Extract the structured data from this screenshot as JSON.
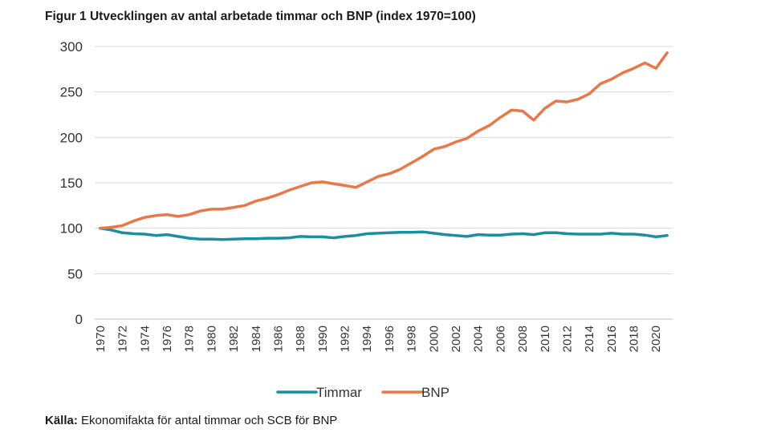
{
  "title": "Figur 1 Utvecklingen av antal arbetade timmar och BNP (index 1970=100)",
  "source": {
    "label": "Källa:",
    "text": " Ekonomifakta för antal timmar och SCB för BNP"
  },
  "colors": {
    "timmar": "#1b8fa0",
    "bnp": "#e8774a",
    "grid": "#d9d9d9",
    "axis": "#bfbfbf"
  },
  "chart_data": {
    "type": "line",
    "title": "Figur 1 Utvecklingen av antal arbetade timmar och BNP (index 1970=100)",
    "xlabel": "",
    "ylabel": "",
    "ylim": [
      0,
      300
    ],
    "yticks": [
      0,
      50,
      100,
      150,
      200,
      250,
      300
    ],
    "grid": true,
    "legend_position": "bottom",
    "x": [
      1970,
      1971,
      1972,
      1973,
      1974,
      1975,
      1976,
      1977,
      1978,
      1979,
      1980,
      1981,
      1982,
      1983,
      1984,
      1985,
      1986,
      1987,
      1988,
      1989,
      1990,
      1991,
      1992,
      1993,
      1994,
      1995,
      1996,
      1997,
      1998,
      1999,
      2000,
      2001,
      2002,
      2003,
      2004,
      2005,
      2006,
      2007,
      2008,
      2009,
      2010,
      2011,
      2012,
      2013,
      2014,
      2015,
      2016,
      2017,
      2018,
      2019,
      2020,
      2021
    ],
    "xtick_labels": [
      "1970",
      "1972",
      "1974",
      "1976",
      "1978",
      "1980",
      "1982",
      "1984",
      "1986",
      "1988",
      "1990",
      "1992",
      "1994",
      "1996",
      "1998",
      "2000",
      "2002",
      "2004",
      "2006",
      "2008",
      "2010",
      "2012",
      "2014",
      "2016",
      "2018",
      "2020"
    ],
    "series": [
      {
        "name": "Timmar",
        "color": "#1b8fa0",
        "values": [
          100,
          98,
          95,
          94,
          93.5,
          92,
          93,
          91,
          89,
          88,
          88,
          87.5,
          88,
          88.5,
          88.5,
          89,
          89,
          89.5,
          91,
          90.5,
          90.5,
          89.5,
          91,
          92,
          94,
          94.5,
          95,
          95.5,
          95.5,
          96,
          94.5,
          93,
          92,
          91,
          93,
          92.5,
          92.5,
          93.5,
          94,
          93,
          95,
          95,
          94,
          93.5,
          93.5,
          93.5,
          94.5,
          93.5,
          93.5,
          92.5,
          90.5,
          92
        ]
      },
      {
        "name": "BNP",
        "color": "#e8774a",
        "values": [
          100,
          101,
          103,
          108,
          112,
          114,
          115,
          113,
          115,
          119,
          121,
          121,
          123,
          125,
          130,
          133,
          137,
          142,
          146,
          150,
          151,
          149,
          147,
          145,
          151,
          157,
          160,
          165,
          172,
          179,
          187,
          190,
          195,
          199,
          207,
          213,
          222,
          230,
          229,
          219,
          232,
          240,
          239,
          242,
          248,
          259,
          264,
          271,
          276,
          282,
          276,
          293
        ]
      }
    ]
  }
}
